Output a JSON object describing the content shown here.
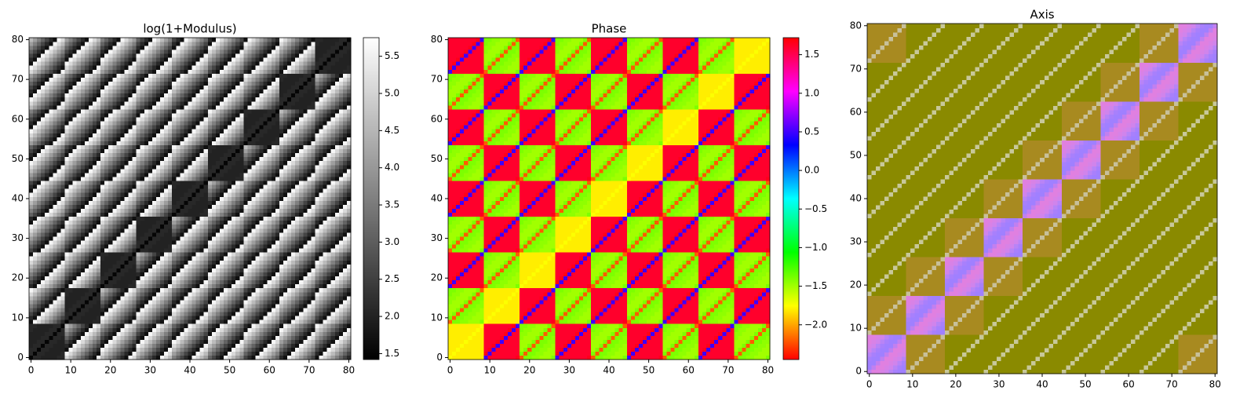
{
  "chart_data": [
    {
      "type": "heatmap",
      "title": "log(1+Modulus)",
      "cmap": "gray",
      "clim": [
        1.42,
        5.75
      ],
      "cticks": [
        {
          "value": 1.5,
          "label": "1.5"
        },
        {
          "value": 2,
          "label": "2.0"
        },
        {
          "value": 2.5,
          "label": "2.5"
        },
        {
          "value": 3,
          "label": "3.0"
        },
        {
          "value": 3.5,
          "label": "3.5"
        },
        {
          "value": 4,
          "label": "4.0"
        },
        {
          "value": 4.5,
          "label": "4.5"
        },
        {
          "value": 5,
          "label": "5.0"
        },
        {
          "value": 5.5,
          "label": "5.5"
        }
      ],
      "xlim": [
        -0.5,
        80.5
      ],
      "ylim": [
        80.5,
        -0.5
      ],
      "xticks": [
        0,
        10,
        20,
        30,
        40,
        50,
        60,
        70,
        80
      ],
      "yticks": [
        0,
        10,
        20,
        30,
        40,
        50,
        60,
        70,
        80
      ],
      "values": [
        [
          1.5,
          2.1,
          2.1,
          2.0,
          2.0,
          2.0,
          2.0,
          2.1,
          2.1
        ],
        [
          5.1,
          4.6,
          4.1,
          3.6,
          3.1,
          2.6,
          2.1,
          1.7,
          5.6
        ],
        [
          4.6,
          4.1,
          3.6,
          3.1,
          2.6,
          2.1,
          1.7,
          5.6,
          5.1
        ],
        [
          4.1,
          3.6,
          3.1,
          2.6,
          2.1,
          1.7,
          5.6,
          5.1,
          4.6
        ],
        [
          3.6,
          3.1,
          2.6,
          2.1,
          1.7,
          5.6,
          5.1,
          4.6,
          4.1
        ],
        [
          3.1,
          2.6,
          2.1,
          1.7,
          5.6,
          5.1,
          4.6,
          4.1,
          3.6
        ],
        [
          2.6,
          2.1,
          1.7,
          5.6,
          5.1,
          4.6,
          4.1,
          3.6,
          3.1
        ],
        [
          2.1,
          1.7,
          5.6,
          5.1,
          4.6,
          4.1,
          3.6,
          3.1,
          2.6
        ],
        [
          1.7,
          5.6,
          5.1,
          4.6,
          4.1,
          3.6,
          3.1,
          2.6,
          2.1
        ]
      ]
    },
    {
      "type": "heatmap",
      "title": "Phase",
      "cmap": "hsv",
      "clim": [
        -2.45,
        1.72
      ],
      "cticks": [
        {
          "value": -2,
          "label": "−2.0"
        },
        {
          "value": -1.5,
          "label": "−1.5"
        },
        {
          "value": -1,
          "label": "−1.0"
        },
        {
          "value": -0.5,
          "label": "−0.5"
        },
        {
          "value": 0,
          "label": "0.0"
        },
        {
          "value": 0.5,
          "label": "0.5"
        },
        {
          "value": 1,
          "label": "1.0"
        },
        {
          "value": 1.5,
          "label": "1.5"
        }
      ],
      "xlim": [
        -0.5,
        80.5
      ],
      "ylim": [
        80.5,
        -0.5
      ],
      "xticks": [
        0,
        10,
        20,
        30,
        40,
        50,
        60,
        70,
        80
      ],
      "yticks": [
        0,
        10,
        20,
        30,
        40,
        50,
        60,
        70,
        80
      ],
      "values": [
        [
          -1.75,
          -1.8,
          -1.8,
          -1.8,
          -1.8,
          -1.8,
          -1.8,
          -1.8,
          -1.8
        ],
        [
          0.5,
          1.6,
          1.6,
          1.6,
          1.6,
          1.6,
          1.6,
          1.6,
          1.65
        ],
        [
          -2.2,
          -1.4,
          -1.4,
          -1.45,
          -1.45,
          -1.5,
          -1.5,
          -1.5,
          -1.4
        ],
        [
          0.5,
          1.6,
          1.6,
          1.6,
          1.6,
          1.6,
          1.6,
          1.6,
          1.65
        ],
        [
          -2.2,
          -1.4,
          -1.4,
          -1.45,
          -1.45,
          -1.5,
          -1.5,
          -1.5,
          -1.4
        ],
        [
          0.5,
          1.6,
          1.6,
          1.6,
          1.6,
          1.6,
          1.6,
          1.6,
          1.65
        ],
        [
          -2.2,
          -1.4,
          -1.4,
          -1.45,
          -1.45,
          -1.5,
          -1.5,
          -1.5,
          -1.4
        ],
        [
          0.5,
          1.6,
          1.6,
          1.6,
          1.6,
          1.6,
          1.6,
          1.6,
          1.65
        ],
        [
          -2.2,
          -1.4,
          -1.4,
          -1.45,
          -1.45,
          -1.5,
          -1.5,
          -1.5,
          -1.4
        ]
      ]
    },
    {
      "type": "rgb",
      "title": "Axis",
      "xlim": [
        -0.5,
        80.5
      ],
      "ylim": [
        80.5,
        -0.5
      ],
      "xticks": [
        0,
        10,
        20,
        30,
        40,
        50,
        60,
        70,
        80
      ],
      "yticks": [
        0,
        10,
        20,
        30,
        40,
        50,
        60,
        70,
        80
      ],
      "colors": [
        [
          "#c080f0",
          "#e080e0",
          "#e080e0",
          "#d882e6",
          "#d084ec",
          "#b884f6",
          "#a880fc",
          "#a080ff",
          "#a080ff"
        ],
        [
          "#c8c09a",
          "#a88a20",
          "#a88a20",
          "#a88a20",
          "#a88a20",
          "#a88a20",
          "#a88a20",
          "#a88a20",
          "#a88a20"
        ],
        [
          "#c8c89a",
          "#8a8a00",
          "#8a8a00",
          "#8a8a00",
          "#8a8a00",
          "#8a8a00",
          "#8a8a00",
          "#8a8a00",
          "#8a8a00"
        ],
        [
          "#c8c89a",
          "#8a8a00",
          "#8a8a00",
          "#8a8a00",
          "#8a8a00",
          "#8a8a00",
          "#8a8a00",
          "#8a8a00",
          "#8a8a00"
        ],
        [
          "#c8c89a",
          "#8a8a00",
          "#8a8a00",
          "#8a8a00",
          "#8a8a00",
          "#8a8a00",
          "#8a8a00",
          "#8a8a00",
          "#8a8a00"
        ],
        [
          "#c8c89a",
          "#8a8a00",
          "#8a8a00",
          "#8a8a00",
          "#8a8a00",
          "#8a8a00",
          "#8a8a00",
          "#8a8a00",
          "#8a8a00"
        ],
        [
          "#c8c89a",
          "#8a8a00",
          "#8a8a00",
          "#8a8a00",
          "#8a8a00",
          "#8a8a00",
          "#8a8a00",
          "#8a8a00",
          "#8a8a00"
        ],
        [
          "#c8c89a",
          "#8a8a00",
          "#8a8a00",
          "#8a8a00",
          "#8a8a00",
          "#8a8a00",
          "#8a8a00",
          "#8a8a00",
          "#8a8a00"
        ],
        [
          "#c8c09a",
          "#a88a20",
          "#a88a20",
          "#a88a20",
          "#a88a20",
          "#a88a20",
          "#a88a20",
          "#a88a20",
          "#a88a20"
        ]
      ]
    }
  ]
}
